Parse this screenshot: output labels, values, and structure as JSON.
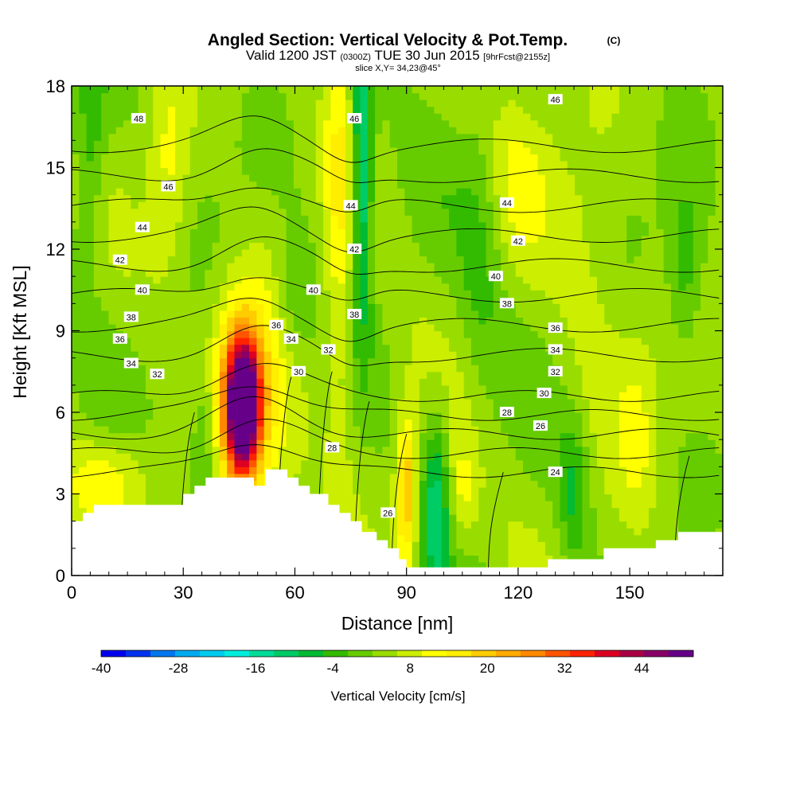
{
  "chart_data": {
    "type": "heatmap",
    "title": "Angled Section: Vertical Velocity & Pot.Temp.",
    "title_unit": "(C)",
    "subtitle_valid": "Valid 1200 JST",
    "subtitle_z": "(0300Z)",
    "subtitle_date": "TUE 30 Jun 2015",
    "subtitle_fcst": "[9hrFcst@2155z]",
    "subtitle_slice": "slice X,Y= 34,23@45°",
    "xlabel": "Distance [nm]",
    "ylabel": "Height [Kft MSL]",
    "xlim": [
      0,
      175
    ],
    "ylim": [
      0,
      18
    ],
    "x_ticks": [
      "0",
      "30",
      "60",
      "90",
      "120",
      "150"
    ],
    "y_ticks": [
      "0",
      "3",
      "6",
      "9",
      "12",
      "15",
      "18"
    ],
    "colorbar": {
      "label": "Vertical Velocity [cm/s]",
      "min": -40,
      "max": 52,
      "step": 4,
      "tick_labels": [
        "-40",
        "-28",
        "-16",
        "-4",
        "8",
        "20",
        "32",
        "44"
      ],
      "colors": [
        "#0000ee",
        "#0033ee",
        "#0077ee",
        "#00aaee",
        "#00ccee",
        "#00eedd",
        "#00dd99",
        "#00cc66",
        "#00bb33",
        "#33bb00",
        "#66cc00",
        "#99dd00",
        "#ccee00",
        "#ffff00",
        "#ffee00",
        "#ffcc00",
        "#ffaa00",
        "#ff8800",
        "#ff5500",
        "#ff2200",
        "#dd0022",
        "#aa0044",
        "#880066",
        "#660088"
      ]
    },
    "contour_labels": [
      {
        "value": "48",
        "x": 18,
        "y": 16.8
      },
      {
        "value": "46",
        "x": 76,
        "y": 16.8
      },
      {
        "value": "46",
        "x": 130,
        "y": 17.5
      },
      {
        "value": "46",
        "x": 26,
        "y": 14.3
      },
      {
        "value": "44",
        "x": 19,
        "y": 12.8
      },
      {
        "value": "44",
        "x": 75,
        "y": 13.6
      },
      {
        "value": "44",
        "x": 117,
        "y": 13.7
      },
      {
        "value": "42",
        "x": 13,
        "y": 11.6
      },
      {
        "value": "42",
        "x": 76,
        "y": 12.0
      },
      {
        "value": "42",
        "x": 120,
        "y": 12.3
      },
      {
        "value": "40",
        "x": 19,
        "y": 10.5
      },
      {
        "value": "40",
        "x": 65,
        "y": 10.5
      },
      {
        "value": "40",
        "x": 114,
        "y": 11.0
      },
      {
        "value": "38",
        "x": 16,
        "y": 9.5
      },
      {
        "value": "38",
        "x": 76,
        "y": 9.6
      },
      {
        "value": "38",
        "x": 117,
        "y": 10.0
      },
      {
        "value": "36",
        "x": 13,
        "y": 8.7
      },
      {
        "value": "36",
        "x": 55,
        "y": 9.2
      },
      {
        "value": "36",
        "x": 130,
        "y": 9.1
      },
      {
        "value": "34",
        "x": 16,
        "y": 7.8
      },
      {
        "value": "34",
        "x": 59,
        "y": 8.7
      },
      {
        "value": "34",
        "x": 130,
        "y": 8.3
      },
      {
        "value": "32",
        "x": 23,
        "y": 7.4
      },
      {
        "value": "32",
        "x": 69,
        "y": 8.3
      },
      {
        "value": "32",
        "x": 130,
        "y": 7.5
      },
      {
        "value": "30",
        "x": 61,
        "y": 7.5
      },
      {
        "value": "30",
        "x": 127,
        "y": 6.7
      },
      {
        "value": "28",
        "x": 70,
        "y": 4.7
      },
      {
        "value": "28",
        "x": 117,
        "y": 6.0
      },
      {
        "value": "26",
        "x": 85,
        "y": 2.3
      },
      {
        "value": "26",
        "x": 126,
        "y": 5.5
      },
      {
        "value": "24",
        "x": 130,
        "y": 3.8
      }
    ],
    "theta_levels": [
      24,
      26,
      28,
      30,
      32,
      34,
      36,
      38,
      40,
      42,
      44,
      46,
      48
    ],
    "terrain_height_kft": [
      [
        0,
        2.0
      ],
      [
        3,
        2.0
      ],
      [
        3,
        2.3
      ],
      [
        6,
        2.3
      ],
      [
        6,
        2.6
      ],
      [
        30,
        2.6
      ],
      [
        30,
        3.0
      ],
      [
        33,
        3.0
      ],
      [
        33,
        3.3
      ],
      [
        36,
        3.3
      ],
      [
        36,
        3.6
      ],
      [
        49,
        3.6
      ],
      [
        49,
        3.3
      ],
      [
        52,
        3.3
      ],
      [
        52,
        3.9
      ],
      [
        58,
        3.9
      ],
      [
        58,
        3.6
      ],
      [
        61,
        3.6
      ],
      [
        61,
        3.3
      ],
      [
        64,
        3.3
      ],
      [
        64,
        3.0
      ],
      [
        69,
        3.0
      ],
      [
        69,
        2.6
      ],
      [
        72,
        2.6
      ],
      [
        72,
        2.3
      ],
      [
        75,
        2.3
      ],
      [
        75,
        2.0
      ],
      [
        78,
        2.0
      ],
      [
        78,
        1.6
      ],
      [
        82,
        1.6
      ],
      [
        82,
        1.3
      ],
      [
        85,
        1.3
      ],
      [
        85,
        1.0
      ],
      [
        88,
        1.0
      ],
      [
        88,
        0.6
      ],
      [
        90,
        0.6
      ],
      [
        90,
        0.3
      ],
      [
        92,
        0.3
      ],
      [
        92,
        0.3
      ],
      [
        128,
        0.3
      ],
      [
        128,
        0.6
      ],
      [
        143,
        0.6
      ],
      [
        143,
        1.0
      ],
      [
        157,
        1.0
      ],
      [
        157,
        1.3
      ],
      [
        163,
        1.3
      ],
      [
        163,
        1.6
      ],
      [
        175,
        1.6
      ]
    ],
    "velocity_features": [
      {
        "x": 46,
        "y": 6.2,
        "sx": 3.0,
        "sy": 1.6,
        "w": 52
      },
      {
        "x": 45,
        "y": 6.5,
        "sx": 5.5,
        "sy": 2.6,
        "w": 20
      },
      {
        "x": 72,
        "y": 13.5,
        "sx": 3.0,
        "sy": 6.0,
        "w": 10
      },
      {
        "x": 78,
        "y": 15.0,
        "sx": 2.0,
        "sy": 4.0,
        "w": -20
      },
      {
        "x": 90,
        "y": 3.0,
        "sx": 2.0,
        "sy": 2.0,
        "w": 20
      },
      {
        "x": 98,
        "y": 2.5,
        "sx": 2.5,
        "sy": 2.5,
        "w": -14
      },
      {
        "x": 36,
        "y": 5.0,
        "sx": 3.0,
        "sy": 2.0,
        "w": -10
      },
      {
        "x": 10,
        "y": 3.5,
        "sx": 8.0,
        "sy": 1.2,
        "w": 10
      },
      {
        "x": 55,
        "y": 6.5,
        "sx": 7.0,
        "sy": 3.5,
        "w": 8
      },
      {
        "x": 5,
        "y": 16.0,
        "sx": 3.0,
        "sy": 3.0,
        "w": -8
      },
      {
        "x": 140,
        "y": 10.0,
        "sx": 6.0,
        "sy": 6.0,
        "w": 4
      },
      {
        "x": 165,
        "y": 11.5,
        "sx": 3.0,
        "sy": 2.0,
        "w": -8
      },
      {
        "x": 60,
        "y": 10.0,
        "sx": 4.0,
        "sy": 2.0,
        "w": -8
      },
      {
        "x": 120,
        "y": 15.0,
        "sx": 8.0,
        "sy": 2.5,
        "w": 6
      },
      {
        "x": 110,
        "y": 13.0,
        "sx": 4.0,
        "sy": 4.0,
        "w": -6
      },
      {
        "x": 26,
        "y": 15.0,
        "sx": 4.0,
        "sy": 3.0,
        "w": 8
      },
      {
        "x": 135,
        "y": 3.0,
        "sx": 3.0,
        "sy": 2.0,
        "w": -10
      },
      {
        "x": 105,
        "y": 3.0,
        "sx": 3.0,
        "sy": 1.5,
        "w": 8
      },
      {
        "x": 152,
        "y": 5.0,
        "sx": 4.0,
        "sy": 3.0,
        "w": 6
      }
    ]
  }
}
